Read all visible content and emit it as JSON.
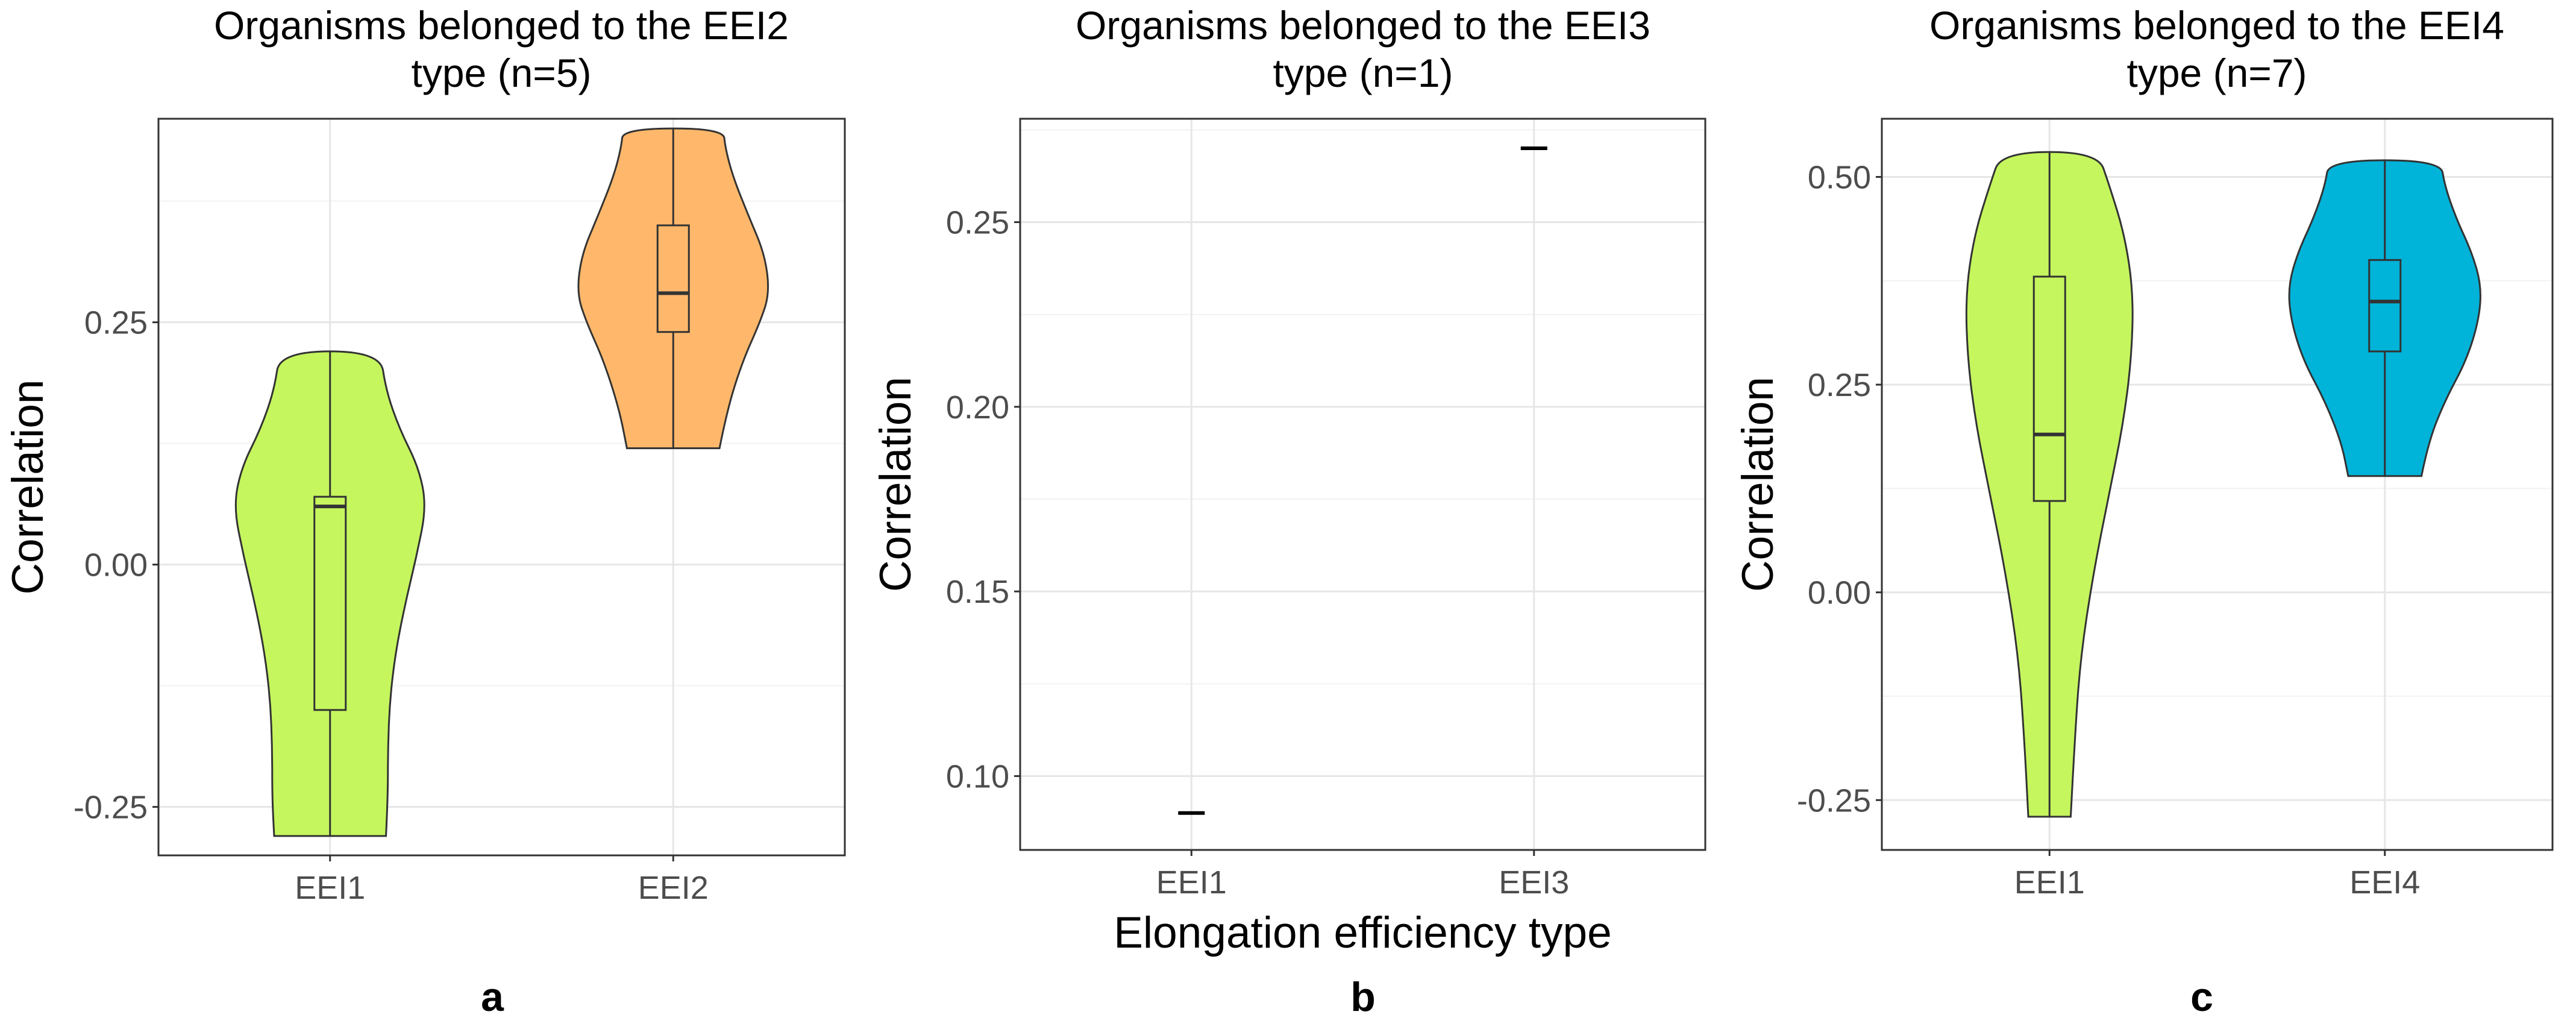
{
  "figure": {
    "xlabel_shared": "Elongation efficiency type"
  },
  "chart_data": [
    {
      "type": "violin",
      "panel_label": "a",
      "title": "Organisms belonged to the EEI2\ntype (n=5)",
      "ylabel": "Correlation",
      "xlabel": "",
      "ylim": [
        -0.3,
        0.46
      ],
      "yticks": [
        -0.25,
        0.0,
        0.25
      ],
      "yticklabels": [
        "-0.25",
        "0.00",
        "0.25"
      ],
      "categories": [
        "EEI1",
        "EEI2"
      ],
      "grid": true,
      "series": [
        {
          "name": "EEI1",
          "color": "#c5f65e",
          "min": -0.28,
          "q1": -0.15,
          "median": 0.06,
          "q3": 0.07,
          "max": 0.22,
          "density": [
            [
              -0.28,
              0.58
            ],
            [
              -0.24,
              0.6
            ],
            [
              -0.19,
              0.6
            ],
            [
              -0.14,
              0.62
            ],
            [
              -0.09,
              0.68
            ],
            [
              -0.04,
              0.78
            ],
            [
              0.01,
              0.9
            ],
            [
              0.06,
              1.0
            ],
            [
              0.1,
              0.92
            ],
            [
              0.14,
              0.72
            ],
            [
              0.18,
              0.58
            ],
            [
              0.22,
              0.52
            ]
          ]
        },
        {
          "name": "EEI2",
          "color": "#ffb86b",
          "min": 0.12,
          "q1": 0.24,
          "median": 0.28,
          "q3": 0.35,
          "max": 0.45,
          "density": [
            [
              0.12,
              0.48
            ],
            [
              0.16,
              0.56
            ],
            [
              0.21,
              0.72
            ],
            [
              0.25,
              0.9
            ],
            [
              0.28,
              1.0
            ],
            [
              0.32,
              0.95
            ],
            [
              0.36,
              0.78
            ],
            [
              0.4,
              0.62
            ],
            [
              0.43,
              0.54
            ],
            [
              0.45,
              0.52
            ]
          ]
        }
      ]
    },
    {
      "type": "violin",
      "panel_label": "b",
      "title": "Organisms belonged to the EEI3\ntype (n=1)",
      "ylabel": "Correlation",
      "xlabel": "Elongation efficiency type",
      "ylim": [
        0.08,
        0.278
      ],
      "yticks": [
        0.1,
        0.15,
        0.2,
        0.25
      ],
      "yticklabels": [
        "0.10",
        "0.15",
        "0.20",
        "0.25"
      ],
      "categories": [
        "EEI1",
        "EEI3"
      ],
      "grid": true,
      "series": [
        {
          "name": "EEI1",
          "color": "#000000",
          "value": 0.09
        },
        {
          "name": "EEI3",
          "color": "#000000",
          "value": 0.27
        }
      ]
    },
    {
      "type": "violin",
      "panel_label": "c",
      "title": "Organisms belonged to the EEI4\ntype (n=7)",
      "ylabel": "Correlation",
      "xlabel": "",
      "ylim": [
        -0.31,
        0.57
      ],
      "yticks": [
        -0.25,
        0.0,
        0.25,
        0.5
      ],
      "yticklabels": [
        "-0.25",
        "0.00",
        "0.25",
        "0.50"
      ],
      "categories": [
        "EEI1",
        "EEI4"
      ],
      "grid": true,
      "series": [
        {
          "name": "EEI1",
          "color": "#c5f65e",
          "min": -0.27,
          "q1": 0.11,
          "median": 0.19,
          "q3": 0.38,
          "max": 0.53,
          "density": [
            [
              -0.27,
              0.22
            ],
            [
              -0.18,
              0.26
            ],
            [
              -0.08,
              0.32
            ],
            [
              0.02,
              0.45
            ],
            [
              0.12,
              0.62
            ],
            [
              0.2,
              0.76
            ],
            [
              0.28,
              0.85
            ],
            [
              0.36,
              0.87
            ],
            [
              0.43,
              0.78
            ],
            [
              0.49,
              0.62
            ],
            [
              0.53,
              0.5
            ]
          ]
        },
        {
          "name": "EEI4",
          "color": "#00b3d9",
          "min": 0.14,
          "q1": 0.29,
          "median": 0.35,
          "q3": 0.4,
          "max": 0.52,
          "density": [
            [
              0.14,
              0.38
            ],
            [
              0.18,
              0.45
            ],
            [
              0.23,
              0.62
            ],
            [
              0.28,
              0.85
            ],
            [
              0.33,
              0.98
            ],
            [
              0.37,
              1.0
            ],
            [
              0.41,
              0.9
            ],
            [
              0.45,
              0.74
            ],
            [
              0.49,
              0.62
            ],
            [
              0.52,
              0.58
            ]
          ]
        }
      ]
    }
  ]
}
